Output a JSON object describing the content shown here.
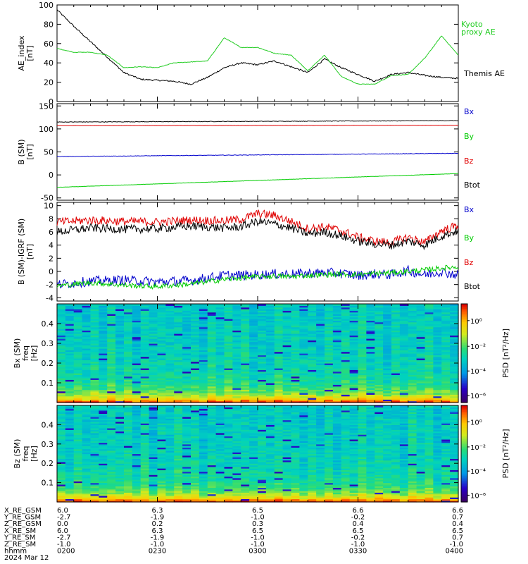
{
  "colors": {
    "black": "#000000",
    "red": "#e00000",
    "blue": "#0000cc",
    "green": "#00cc00",
    "kyoto_green": "#22cc22",
    "background": "#ffffff"
  },
  "chart_data": [
    {
      "type": "line",
      "ylabel_lines": [
        "AE_index",
        "[nT]"
      ],
      "ylim": [
        0,
        100
      ],
      "y_ticks": [
        "0",
        "20",
        "40",
        "60",
        "80",
        "100"
      ],
      "x": [
        0,
        5,
        10,
        15,
        20,
        25,
        30,
        35,
        40,
        45,
        50,
        55,
        60,
        65,
        70,
        75,
        80,
        85,
        90,
        95,
        100,
        105,
        110,
        115,
        120
      ],
      "series": [
        {
          "name": "Themis AE",
          "color": "#000000",
          "values": [
            95,
            78,
            62,
            46,
            30,
            23,
            22,
            21,
            18,
            25,
            35,
            40,
            38,
            42,
            36,
            30,
            44,
            35,
            28,
            21,
            28,
            30,
            27,
            25,
            24
          ]
        },
        {
          "name": "Kyoto proxy AE",
          "color": "#22cc22",
          "values": [
            55,
            51,
            51,
            48,
            35,
            36,
            35,
            40,
            41,
            42,
            66,
            56,
            56,
            50,
            48,
            32,
            48,
            26,
            18,
            18,
            27,
            28,
            45,
            68,
            48
          ]
        }
      ],
      "legend_labels": [
        "Kyoto",
        "proxy AE",
        "Themis AE"
      ]
    },
    {
      "type": "line",
      "ylabel_lines": [
        "B (SM)",
        "[nT]"
      ],
      "ylim": [
        -55,
        155
      ],
      "y_ticks": [
        "-50",
        "0",
        "50",
        "100",
        "150"
      ],
      "x": [
        0,
        120
      ],
      "series": [
        {
          "name": "Bx",
          "color": "#000000",
          "values": [
            115,
            118
          ]
        },
        {
          "name": "Bz",
          "color": "#e00000",
          "values": [
            107,
            108
          ]
        },
        {
          "name": "By",
          "color": "#0000cc",
          "values": [
            40,
            47
          ]
        },
        {
          "name": "Btot",
          "color": "#00cc00",
          "values": [
            -27,
            3
          ]
        }
      ],
      "legend": [
        "Bx",
        "By",
        "Bz",
        "Btot"
      ]
    },
    {
      "type": "line",
      "ylabel_lines": [
        "B (SM)-IGRF (SM)",
        "[nT]"
      ],
      "ylim": [
        -4.5,
        10.5
      ],
      "y_ticks": [
        "-4",
        "-2",
        "0",
        "2",
        "4",
        "6",
        "8",
        "10"
      ],
      "x": [
        0,
        10,
        20,
        30,
        40,
        50,
        55,
        60,
        65,
        70,
        75,
        80,
        85,
        90,
        95,
        100,
        105,
        110,
        115,
        120
      ],
      "series": [
        {
          "name": "Bz",
          "color": "#e00000",
          "values": [
            7.5,
            7.8,
            7.6,
            7.5,
            7.8,
            7.7,
            7.9,
            8.8,
            8.5,
            7.6,
            6.5,
            6.8,
            6.2,
            5.2,
            4.6,
            4.4,
            5.2,
            4.4,
            6.2,
            7.0
          ]
        },
        {
          "name": "Bx",
          "color": "#000000",
          "values": [
            6.0,
            6.6,
            6.4,
            6.5,
            6.9,
            6.6,
            6.8,
            7.6,
            7.2,
            6.6,
            5.7,
            6.0,
            5.4,
            4.6,
            4.2,
            4.0,
            4.6,
            4.0,
            5.4,
            6.2
          ]
        },
        {
          "name": "By",
          "color": "#0000cc",
          "values": [
            -2.0,
            -1.5,
            -1.3,
            -1.6,
            -1.4,
            -0.6,
            -0.6,
            -0.5,
            -0.4,
            -0.4,
            -0.3,
            -0.2,
            -0.3,
            -0.6,
            -0.4,
            -0.5,
            0.1,
            -0.5,
            0.0,
            -0.6
          ]
        },
        {
          "name": "Btot",
          "color": "#00cc00",
          "values": [
            -2.2,
            -1.7,
            -2.1,
            -2.3,
            -1.9,
            -1.2,
            -1.0,
            -0.8,
            -0.7,
            -0.8,
            -0.6,
            -0.5,
            -0.4,
            -0.5,
            -0.3,
            -0.2,
            0.0,
            0.2,
            0.5,
            0.7
          ]
        }
      ],
      "legend": [
        "Bx",
        "By",
        "Bz",
        "Btot"
      ]
    },
    {
      "type": "heatmap",
      "ylabel_lines": [
        "Bx (SM)",
        "freq",
        "[Hz]"
      ],
      "ylim": [
        0,
        0.5
      ],
      "y_ticks": [
        "0.1",
        "0.2",
        "0.3",
        "0.4"
      ],
      "colorbar_label": "PSD [nT²/Hz]",
      "colorbar_ticks": [
        "10⁰",
        "10⁻²",
        "10⁻⁴",
        "10⁻⁶"
      ]
    },
    {
      "type": "heatmap",
      "ylabel_lines": [
        "Bz (SM)",
        "freq",
        "[Hz]"
      ],
      "ylim": [
        0,
        0.5
      ],
      "y_ticks": [
        "0.1",
        "0.2",
        "0.3",
        "0.4"
      ],
      "colorbar_label": "PSD [nT²/Hz]",
      "colorbar_ticks": [
        "10⁰",
        "10⁻²",
        "10⁻⁴",
        "10⁻⁶"
      ]
    }
  ],
  "ephemeris": {
    "rows": [
      {
        "label": "X_RE_GSM",
        "values": [
          "6.0",
          "6.3",
          "6.5",
          "6.6",
          "6.6"
        ]
      },
      {
        "label": "Y_RE_GSM",
        "values": [
          "-2.7",
          "-1.9",
          "-1.0",
          "-0.2",
          "0.7"
        ]
      },
      {
        "label": "Z_RE_GSM",
        "values": [
          "0.0",
          "0.2",
          "0.3",
          "0.4",
          "0.4"
        ]
      },
      {
        "label": "X_RE_SM",
        "values": [
          "6.0",
          "6.3",
          "6.5",
          "6.5",
          "6.5"
        ]
      },
      {
        "label": "Y_RE_SM",
        "values": [
          "-2.7",
          "-1.9",
          "-1.0",
          "-0.2",
          "0.7"
        ]
      },
      {
        "label": "Z_RE_SM",
        "values": [
          "-1.0",
          "-1.0",
          "-1.0",
          "-1.0",
          "-1.0"
        ]
      },
      {
        "label": "hhmm",
        "values": [
          "0200",
          "0230",
          "0300",
          "0330",
          "0400"
        ]
      }
    ],
    "date": "2024 Mar 12"
  }
}
